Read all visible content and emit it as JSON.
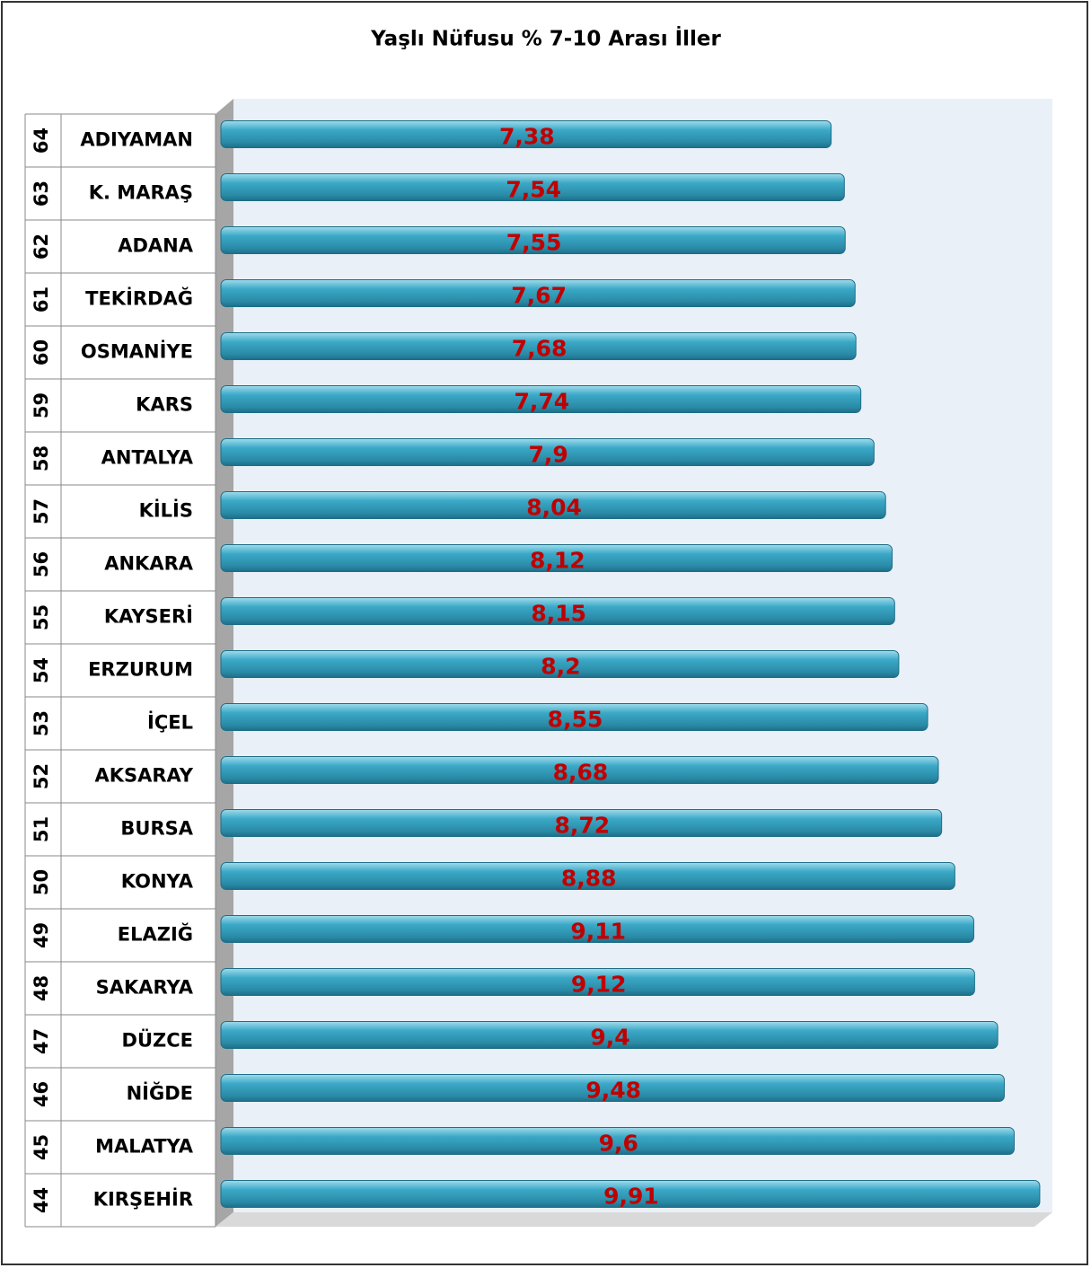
{
  "chart_data": {
    "type": "bar",
    "orientation": "horizontal",
    "title": "Yaşlı Nüfusu % 7-10 Arası İller",
    "ranks": [
      64,
      63,
      62,
      61,
      60,
      59,
      58,
      57,
      56,
      55,
      54,
      53,
      52,
      51,
      50,
      49,
      48,
      47,
      46,
      45,
      44
    ],
    "categories": [
      "ADIYAMAN",
      "K. MARAŞ",
      "ADANA",
      "TEKİRDAĞ",
      "OSMANİYE",
      "KARS",
      "ANTALYA",
      "KİLİS",
      "ANKARA",
      "KAYSERİ",
      "ERZURUM",
      "İÇEL",
      "AKSARAY",
      "BURSA",
      "KONYA",
      "ELAZIĞ",
      "SAKARYA",
      "DÜZCE",
      "NİĞDE",
      "MALATYA",
      "KIRŞEHİR"
    ],
    "values": [
      7.38,
      7.54,
      7.55,
      7.67,
      7.68,
      7.74,
      7.9,
      8.04,
      8.12,
      8.15,
      8.2,
      8.55,
      8.68,
      8.72,
      8.88,
      9.11,
      9.12,
      9.4,
      9.48,
      9.6,
      9.91
    ],
    "value_labels": [
      "7,38",
      "7,54",
      "7,55",
      "7,67",
      "7,68",
      "7,74",
      "7,9",
      "8,04",
      "8,12",
      "8,15",
      "8,2",
      "8,55",
      "8,68",
      "8,72",
      "8,88",
      "9,11",
      "9,12",
      "9,4",
      "9,48",
      "9,6",
      "9,91"
    ],
    "color": "#2f9bb9",
    "label_color": "#c00000",
    "xlim": [
      0,
      10
    ]
  }
}
